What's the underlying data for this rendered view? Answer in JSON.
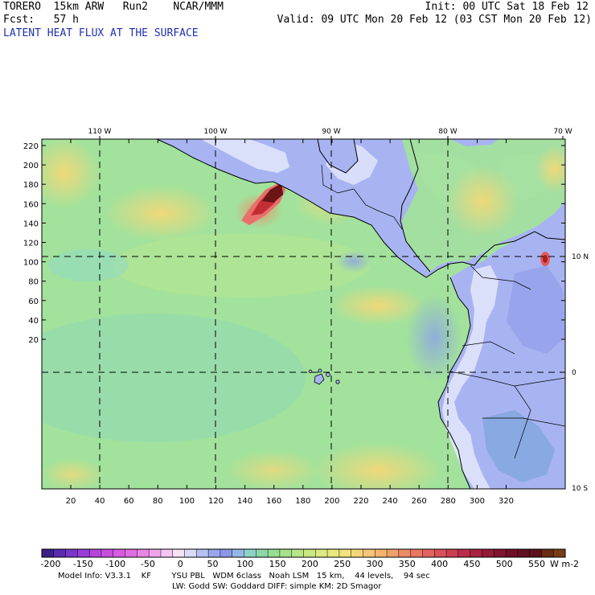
{
  "header": {
    "left_line1": "TORERO  15km ARW   Run2    NCAR/MMM",
    "left_line2": "Fcst:   57 h",
    "right_line1": "Init: 00 UTC Sat 18 Feb 12",
    "right_line2": "Valid: 09 UTC Mon 20 Feb 12 (03 CST Mon 20 Feb 12)",
    "field_title": "LATENT HEAT FLUX AT THE SURFACE"
  },
  "map": {
    "top_lon_labels": [
      "110 W",
      "100 W",
      "90 W",
      "80 W",
      "70 W"
    ],
    "right_lat_labels": [
      "10 N",
      "0",
      "10 S"
    ],
    "y_ticks": [
      "220",
      "200",
      "180",
      "160",
      "140",
      "120",
      "100",
      "80",
      "60",
      "40",
      "20"
    ],
    "x_ticks": [
      "20",
      "40",
      "60",
      "80",
      "100",
      "120",
      "140",
      "160",
      "180",
      "200",
      "220",
      "240",
      "260",
      "280",
      "300",
      "320"
    ],
    "colors": {
      "ocean": "#9ee29a",
      "land": "#a8b4f2",
      "land_light": "#e4e8fb",
      "warm": "#f3d878",
      "hot": "#e25a5a",
      "peak": "#6a1414"
    }
  },
  "colorbar": {
    "labels": [
      "-200",
      "-150",
      "-100",
      "-50",
      "0",
      "50",
      "100",
      "150",
      "200",
      "250",
      "300",
      "350",
      "400",
      "450",
      "500",
      "550"
    ],
    "unit": "W m-2",
    "colors": [
      "#3b1e8a",
      "#5a2bb0",
      "#7a35c8",
      "#9a3cd8",
      "#b444dc",
      "#c84fde",
      "#d65ce0",
      "#e06ee2",
      "#e886e6",
      "#f0a4ec",
      "#f6c6f2",
      "#f8e2f6",
      "#d8dcf8",
      "#b8c0f2",
      "#9aa6ec",
      "#8c98e6",
      "#94b8e6",
      "#8fd2c8",
      "#8ed8a8",
      "#96de92",
      "#a6e28a",
      "#b8e686",
      "#cce882",
      "#dcea80",
      "#e8e87c",
      "#f2e27c",
      "#f6d67a",
      "#f6c676",
      "#f4b470",
      "#f0a06a",
      "#ec8c66",
      "#e87862",
      "#e2645e",
      "#da505a",
      "#cc3c52",
      "#bc2c48",
      "#a82240",
      "#941a38",
      "#801430",
      "#701028",
      "#641020",
      "#5c1218",
      "#6a2a14",
      "#7a3c14"
    ]
  },
  "footer": {
    "line1": "Model Info: V3.3.1    KF        YSU PBL   WDM 6class   Noah LSM   15 km,    44 levels,    94 sec",
    "line2": "LW: Godd SW: Goddard DIFF: simple KM: 2D Smagor"
  }
}
